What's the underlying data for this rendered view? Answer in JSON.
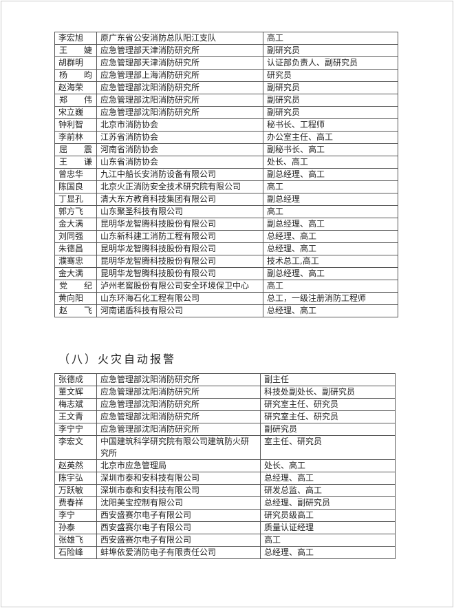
{
  "table1": {
    "rows": [
      [
        "李宏旭",
        "原广东省公安消防总队阳江支队",
        "高工"
      ],
      [
        "王　婕",
        "应急管理部天津消防研究所",
        "副研究员"
      ],
      [
        "胡群明",
        "应急管理部天津消防研究所",
        "认证部负责人、副研究员"
      ],
      [
        "杨　昀",
        "应急管理部上海消防研究所",
        "研究员"
      ],
      [
        "赵海荣",
        "应急管理部沈阳消防研究所",
        "副研究员"
      ],
      [
        "郑　伟",
        "应急管理部沈阳消防研究所",
        "副研究员"
      ],
      [
        "宋立巍",
        "应急管理部沈阳消防研究所",
        "副研究员"
      ],
      [
        "钟利智",
        "北京市消防协会",
        "秘书长、工程师"
      ],
      [
        "李前林",
        "江苏省消防协会",
        "办公室主任、高工"
      ],
      [
        "屈　震",
        "河南省消防协会",
        "副秘书长、高工"
      ],
      [
        "王　谦",
        "山东省消防协会",
        "处长、高工"
      ],
      [
        "曾忠华",
        "九江中船长安消防设备有限公司",
        "副总经理、高工"
      ],
      [
        "陈国良",
        "北京火正消防安全技术研究院有限公司",
        "高工"
      ],
      [
        "丁显孔",
        "清大东方教育科技集团有限公司",
        "副总经理"
      ],
      [
        "郭方飞",
        "山东聚圣科技有限公司",
        "高工"
      ],
      [
        "金大满",
        "昆明华龙智腾科技股份有限公司",
        "副总经理、高工"
      ],
      [
        "刘同强",
        "山东新科建工消防工程有限公司",
        "总经理、高工"
      ],
      [
        "朱德昌",
        "昆明华龙智腾科技股份有限公司",
        "总经理、高工"
      ],
      [
        "濮骞忠",
        "昆明华龙智腾科技股份有限公司",
        "技术总工,高工"
      ],
      [
        "金大满",
        "昆明华龙智腾科技股份有限公司",
        "副总经理、高工"
      ],
      [
        "党　纪",
        "泸州老窖股份有限公司安全环境保卫中心",
        "高工"
      ],
      [
        "黄向阳",
        "山东环海石化工程有限公司",
        "总工，一级注册消防工程师"
      ],
      [
        "赵　飞",
        "河南诺盾科技有限公司",
        "总经理、高工"
      ]
    ]
  },
  "section_heading": "（八）火灾自动报警",
  "table2": {
    "rows": [
      [
        "张德成",
        "应急管理部沈阳消防研究所",
        "副主任"
      ],
      [
        "董文辉",
        "应急管理部沈阳消防研究所",
        "科技处副处长、副研究员"
      ],
      [
        "梅志斌",
        "应急管理部沈阳消防研究所",
        "研究室主任、研究员"
      ],
      [
        "王文青",
        "应急管理部沈阳消防研究所",
        "研究室主任、研究员"
      ],
      [
        "李宁宁",
        "应急管理部沈阳消防研究所",
        "副研究员"
      ],
      [
        "李宏文",
        "中国建筑科学研究院有限公司建筑防火研究所",
        "室主任、研究员"
      ],
      [
        "赵英然",
        "北京市应急管理局",
        "处长、高工"
      ],
      [
        "陈宇弘",
        "深圳市泰和安科技有限公司",
        "总经理、高工"
      ],
      [
        "万跃敏",
        "深圳市泰和安科技有限公司",
        "研发总监、高工"
      ],
      [
        "费春祥",
        "沈阳美宝控制有限公司",
        "总经理、副研究员"
      ],
      [
        "李宁",
        "西安盛赛尔电子有限公司",
        "研究员级高工"
      ],
      [
        "孙泰",
        "西安盛赛尔电子有限公司",
        "质量认证经理"
      ],
      [
        "张雄飞",
        "西安盛赛尔电子有限公司",
        "高工"
      ],
      [
        "石险峰",
        "蚌埠依爱消防电子有限责任公司",
        "总经理、高工"
      ]
    ]
  }
}
